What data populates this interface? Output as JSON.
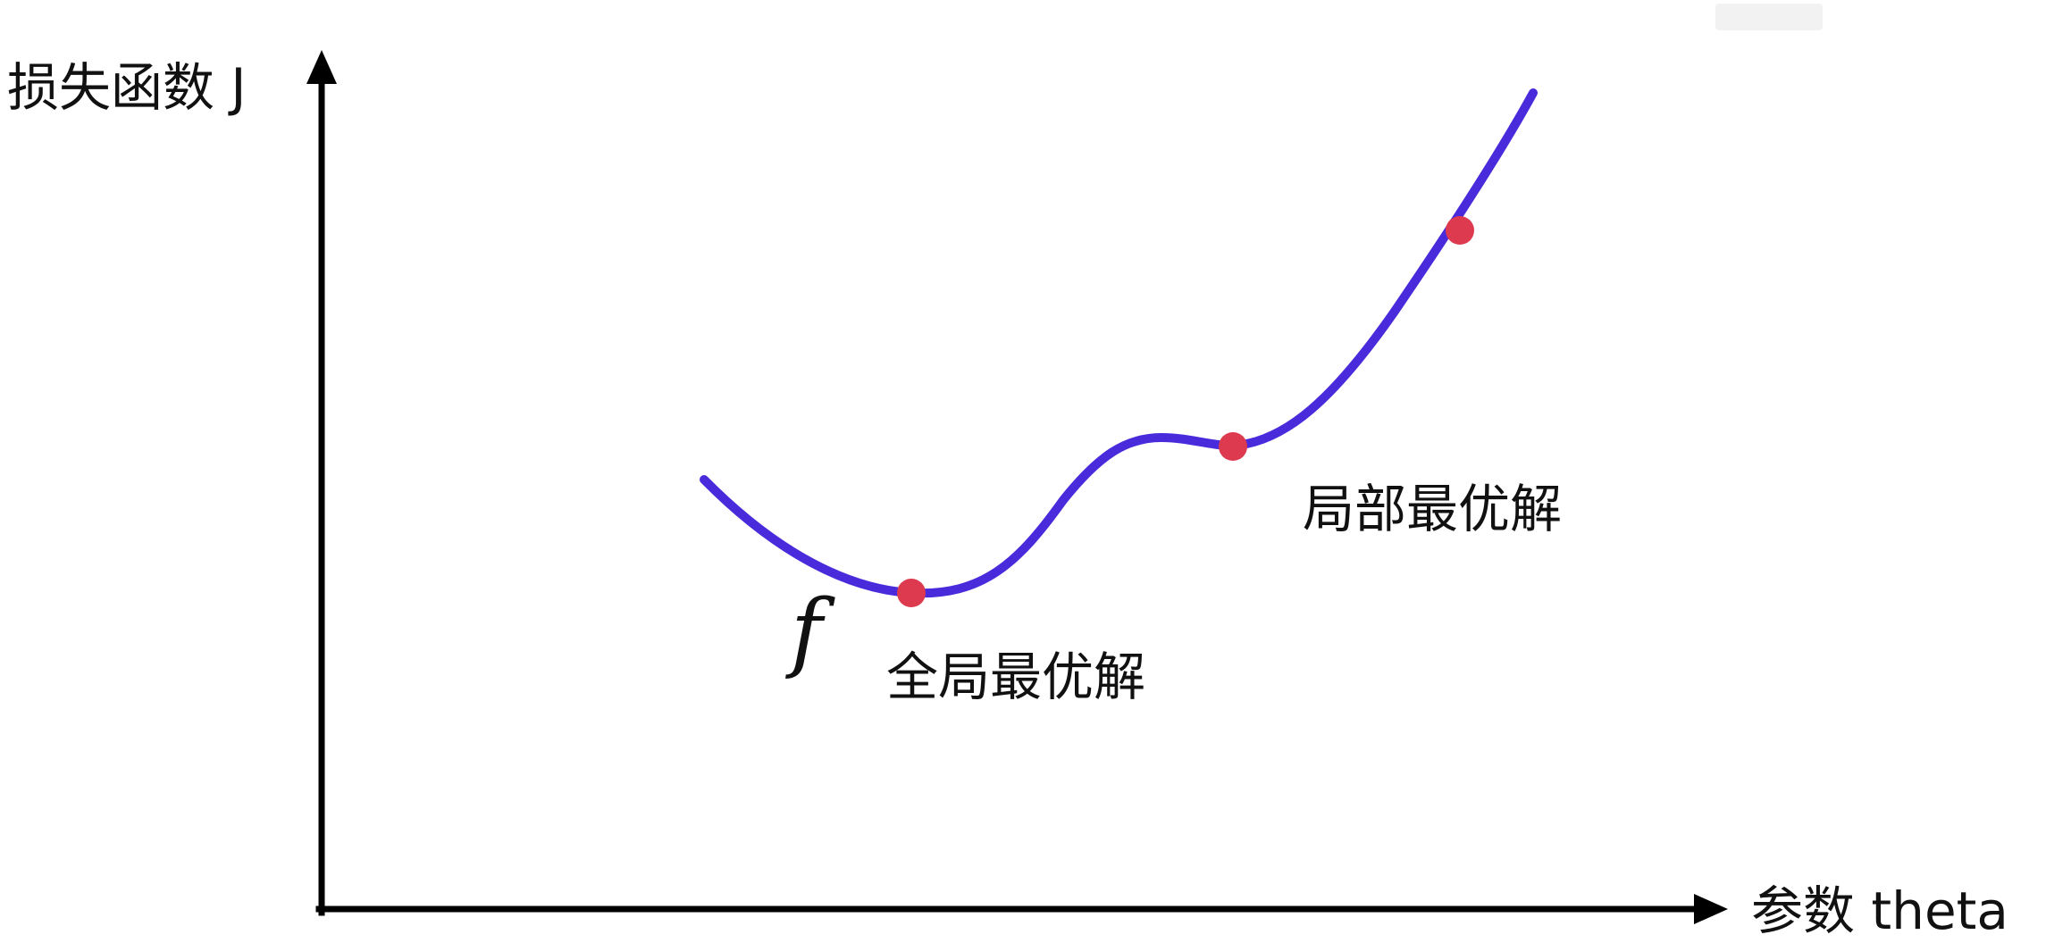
{
  "diagram": {
    "y_axis_label": "损失函数 J",
    "x_axis_label": "参数 theta",
    "function_label": "f",
    "global_optimum_label": "全局最优解",
    "local_optimum_label": "局部最优解",
    "curve_color": "#4a2bdc",
    "point_color": "#dd3a4f",
    "axis_color": "#000000"
  }
}
